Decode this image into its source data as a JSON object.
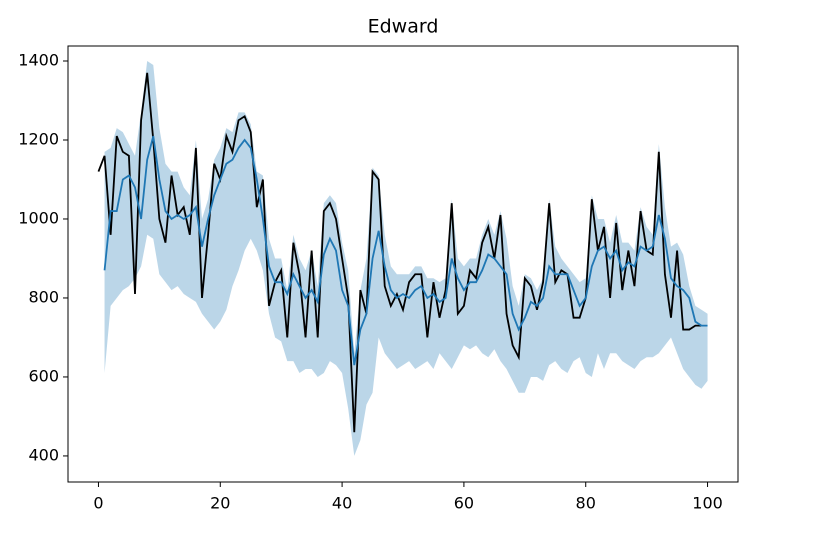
{
  "chart_data": {
    "type": "line",
    "title": "Edward",
    "xlim": [
      -5,
      105
    ],
    "ylim": [
      334,
      1438
    ],
    "xticks": [
      0,
      20,
      40,
      60,
      80,
      100
    ],
    "yticks": [
      400,
      600,
      800,
      1000,
      1200,
      1400
    ],
    "grid": false,
    "band_opacity": 0.3,
    "series": [
      {
        "color": "#000000",
        "x": [
          0,
          1,
          2,
          3,
          4,
          5,
          6,
          7,
          8,
          9,
          10,
          11,
          12,
          13,
          14,
          15,
          16,
          17,
          18,
          19,
          20,
          21,
          22,
          23,
          24,
          25,
          26,
          27,
          28,
          29,
          30,
          31,
          32,
          33,
          34,
          35,
          36,
          37,
          38,
          39,
          40,
          41,
          42,
          43,
          44,
          45,
          46,
          47,
          48,
          49,
          50,
          51,
          52,
          53,
          54,
          55,
          56,
          57,
          58,
          59,
          60,
          61,
          62,
          63,
          64,
          65,
          66,
          67,
          68,
          69,
          70,
          71,
          72,
          73,
          74,
          75,
          76,
          77,
          78,
          79,
          80,
          81,
          82,
          83,
          84,
          85,
          86,
          87,
          88,
          89,
          90,
          91,
          92,
          93,
          94,
          95,
          96,
          97,
          98,
          99
        ],
        "values": [
          1120,
          1160,
          960,
          1210,
          1170,
          1160,
          810,
          1250,
          1370,
          1200,
          1000,
          940,
          1110,
          1010,
          1030,
          960,
          1180,
          800,
          960,
          1140,
          1100,
          1210,
          1170,
          1250,
          1260,
          1220,
          1030,
          1100,
          780,
          840,
          870,
          700,
          940,
          860,
          700,
          920,
          700,
          1020,
          1040,
          1000,
          900,
          800,
          460,
          820,
          760,
          1120,
          1100,
          830,
          780,
          810,
          770,
          840,
          860,
          860,
          700,
          840,
          750,
          820,
          1040,
          760,
          780,
          870,
          850,
          940,
          980,
          900,
          1010,
          760,
          680,
          650,
          850,
          830,
          770,
          840,
          1040,
          840,
          870,
          860,
          750,
          750,
          800,
          1050,
          920,
          980,
          800,
          990,
          820,
          920,
          830,
          1020,
          920,
          910,
          1170,
          860,
          750,
          920,
          720,
          720,
          730,
          730
        ]
      },
      {
        "color": "#1f77b4",
        "x": [
          1,
          2,
          3,
          4,
          5,
          6,
          7,
          8,
          9,
          10,
          11,
          12,
          13,
          14,
          15,
          16,
          17,
          18,
          19,
          20,
          21,
          22,
          23,
          24,
          25,
          26,
          27,
          28,
          29,
          30,
          31,
          32,
          33,
          34,
          35,
          36,
          37,
          38,
          39,
          40,
          41,
          42,
          43,
          44,
          45,
          46,
          47,
          48,
          49,
          50,
          51,
          52,
          53,
          54,
          55,
          56,
          57,
          58,
          59,
          60,
          61,
          62,
          63,
          64,
          65,
          66,
          67,
          68,
          69,
          70,
          71,
          72,
          73,
          74,
          75,
          76,
          77,
          78,
          79,
          80,
          81,
          82,
          83,
          84,
          85,
          86,
          87,
          88,
          89,
          90,
          91,
          92,
          93,
          94,
          95,
          96,
          97,
          98,
          99,
          100
        ],
        "values": [
          870,
          1020,
          1020,
          1100,
          1110,
          1080,
          1000,
          1150,
          1210,
          1100,
          1020,
          1000,
          1010,
          1000,
          1010,
          1030,
          930,
          1000,
          1060,
          1100,
          1140,
          1150,
          1180,
          1200,
          1180,
          1100,
          1000,
          880,
          840,
          840,
          810,
          860,
          830,
          800,
          820,
          790,
          910,
          950,
          920,
          820,
          780,
          630,
          720,
          760,
          900,
          970,
          880,
          820,
          800,
          810,
          800,
          820,
          830,
          800,
          810,
          790,
          800,
          900,
          850,
          820,
          840,
          840,
          870,
          910,
          900,
          880,
          860,
          760,
          720,
          750,
          790,
          780,
          800,
          880,
          860,
          860,
          860,
          820,
          780,
          800,
          880,
          920,
          930,
          900,
          920,
          870,
          890,
          880,
          930,
          920,
          930,
          1010,
          950,
          850,
          830,
          820,
          800,
          740,
          730,
          730
        ],
        "lower": [
          610,
          780,
          800,
          820,
          830,
          850,
          880,
          960,
          950,
          860,
          840,
          820,
          830,
          810,
          800,
          790,
          760,
          740,
          720,
          740,
          770,
          830,
          870,
          920,
          950,
          920,
          870,
          760,
          700,
          690,
          640,
          640,
          610,
          620,
          620,
          600,
          610,
          640,
          630,
          610,
          520,
          400,
          440,
          530,
          560,
          700,
          660,
          640,
          620,
          630,
          640,
          620,
          630,
          640,
          620,
          660,
          640,
          620,
          650,
          680,
          670,
          680,
          660,
          650,
          670,
          640,
          620,
          590,
          560,
          560,
          600,
          600,
          590,
          630,
          640,
          620,
          610,
          640,
          650,
          610,
          600,
          660,
          620,
          660,
          660,
          640,
          630,
          620,
          640,
          650,
          650,
          660,
          680,
          700,
          660,
          620,
          600,
          580,
          570,
          590
        ],
        "upper": [
          1170,
          1180,
          1230,
          1220,
          1190,
          1160,
          1270,
          1400,
          1390,
          1230,
          1140,
          1120,
          1120,
          1080,
          1060,
          1200,
          1000,
          1050,
          1150,
          1180,
          1230,
          1220,
          1270,
          1270,
          1240,
          1120,
          1110,
          950,
          900,
          900,
          820,
          960,
          900,
          870,
          920,
          830,
          1040,
          1060,
          1040,
          940,
          870,
          660,
          820,
          900,
          1130,
          1110,
          960,
          880,
          860,
          860,
          860,
          880,
          880,
          850,
          850,
          840,
          850,
          1050,
          900,
          880,
          900,
          900,
          960,
          1000,
          960,
          1020,
          950,
          830,
          780,
          860,
          850,
          820,
          850,
          1050,
          930,
          900,
          880,
          860,
          840,
          850,
          1060,
          1000,
          1000,
          940,
          1010,
          940,
          940,
          920,
          1030,
          980,
          960,
          1190,
          1030,
          930,
          940,
          910,
          830,
          780,
          770,
          760
        ]
      }
    ]
  }
}
